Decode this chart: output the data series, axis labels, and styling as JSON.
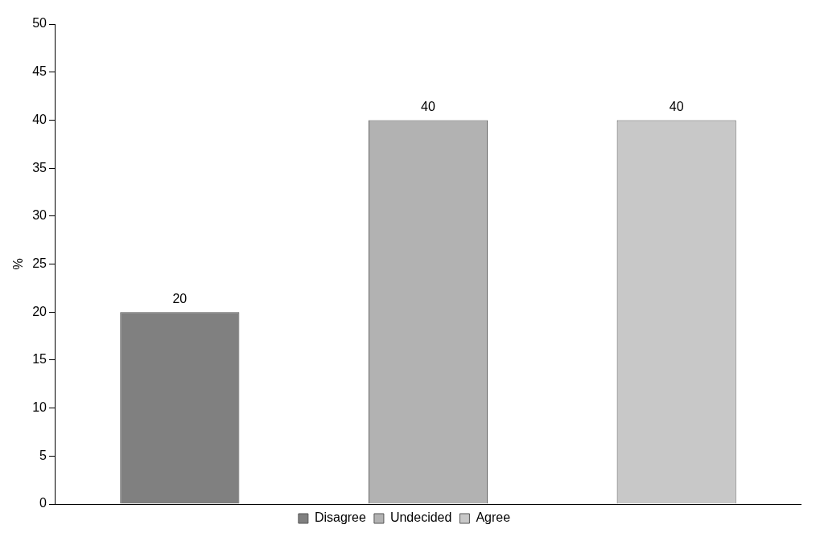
{
  "chart_data": {
    "type": "bar",
    "ylabel": "%",
    "categories": [
      null
    ],
    "series": [
      {
        "name": "Disagree",
        "color": "#808080",
        "values": [
          20
        ]
      },
      {
        "name": "Undecided",
        "color": "#b2b2b2",
        "values": [
          40
        ]
      },
      {
        "name": "Agree",
        "color": "#c8c8c8",
        "values": [
          40
        ]
      }
    ],
    "ylim": [
      0,
      50
    ],
    "yticks": [
      0,
      5,
      10,
      15,
      20,
      25,
      30,
      35,
      40,
      45,
      50
    ],
    "grid": false,
    "legend": "bottom",
    "data_labels": true
  }
}
